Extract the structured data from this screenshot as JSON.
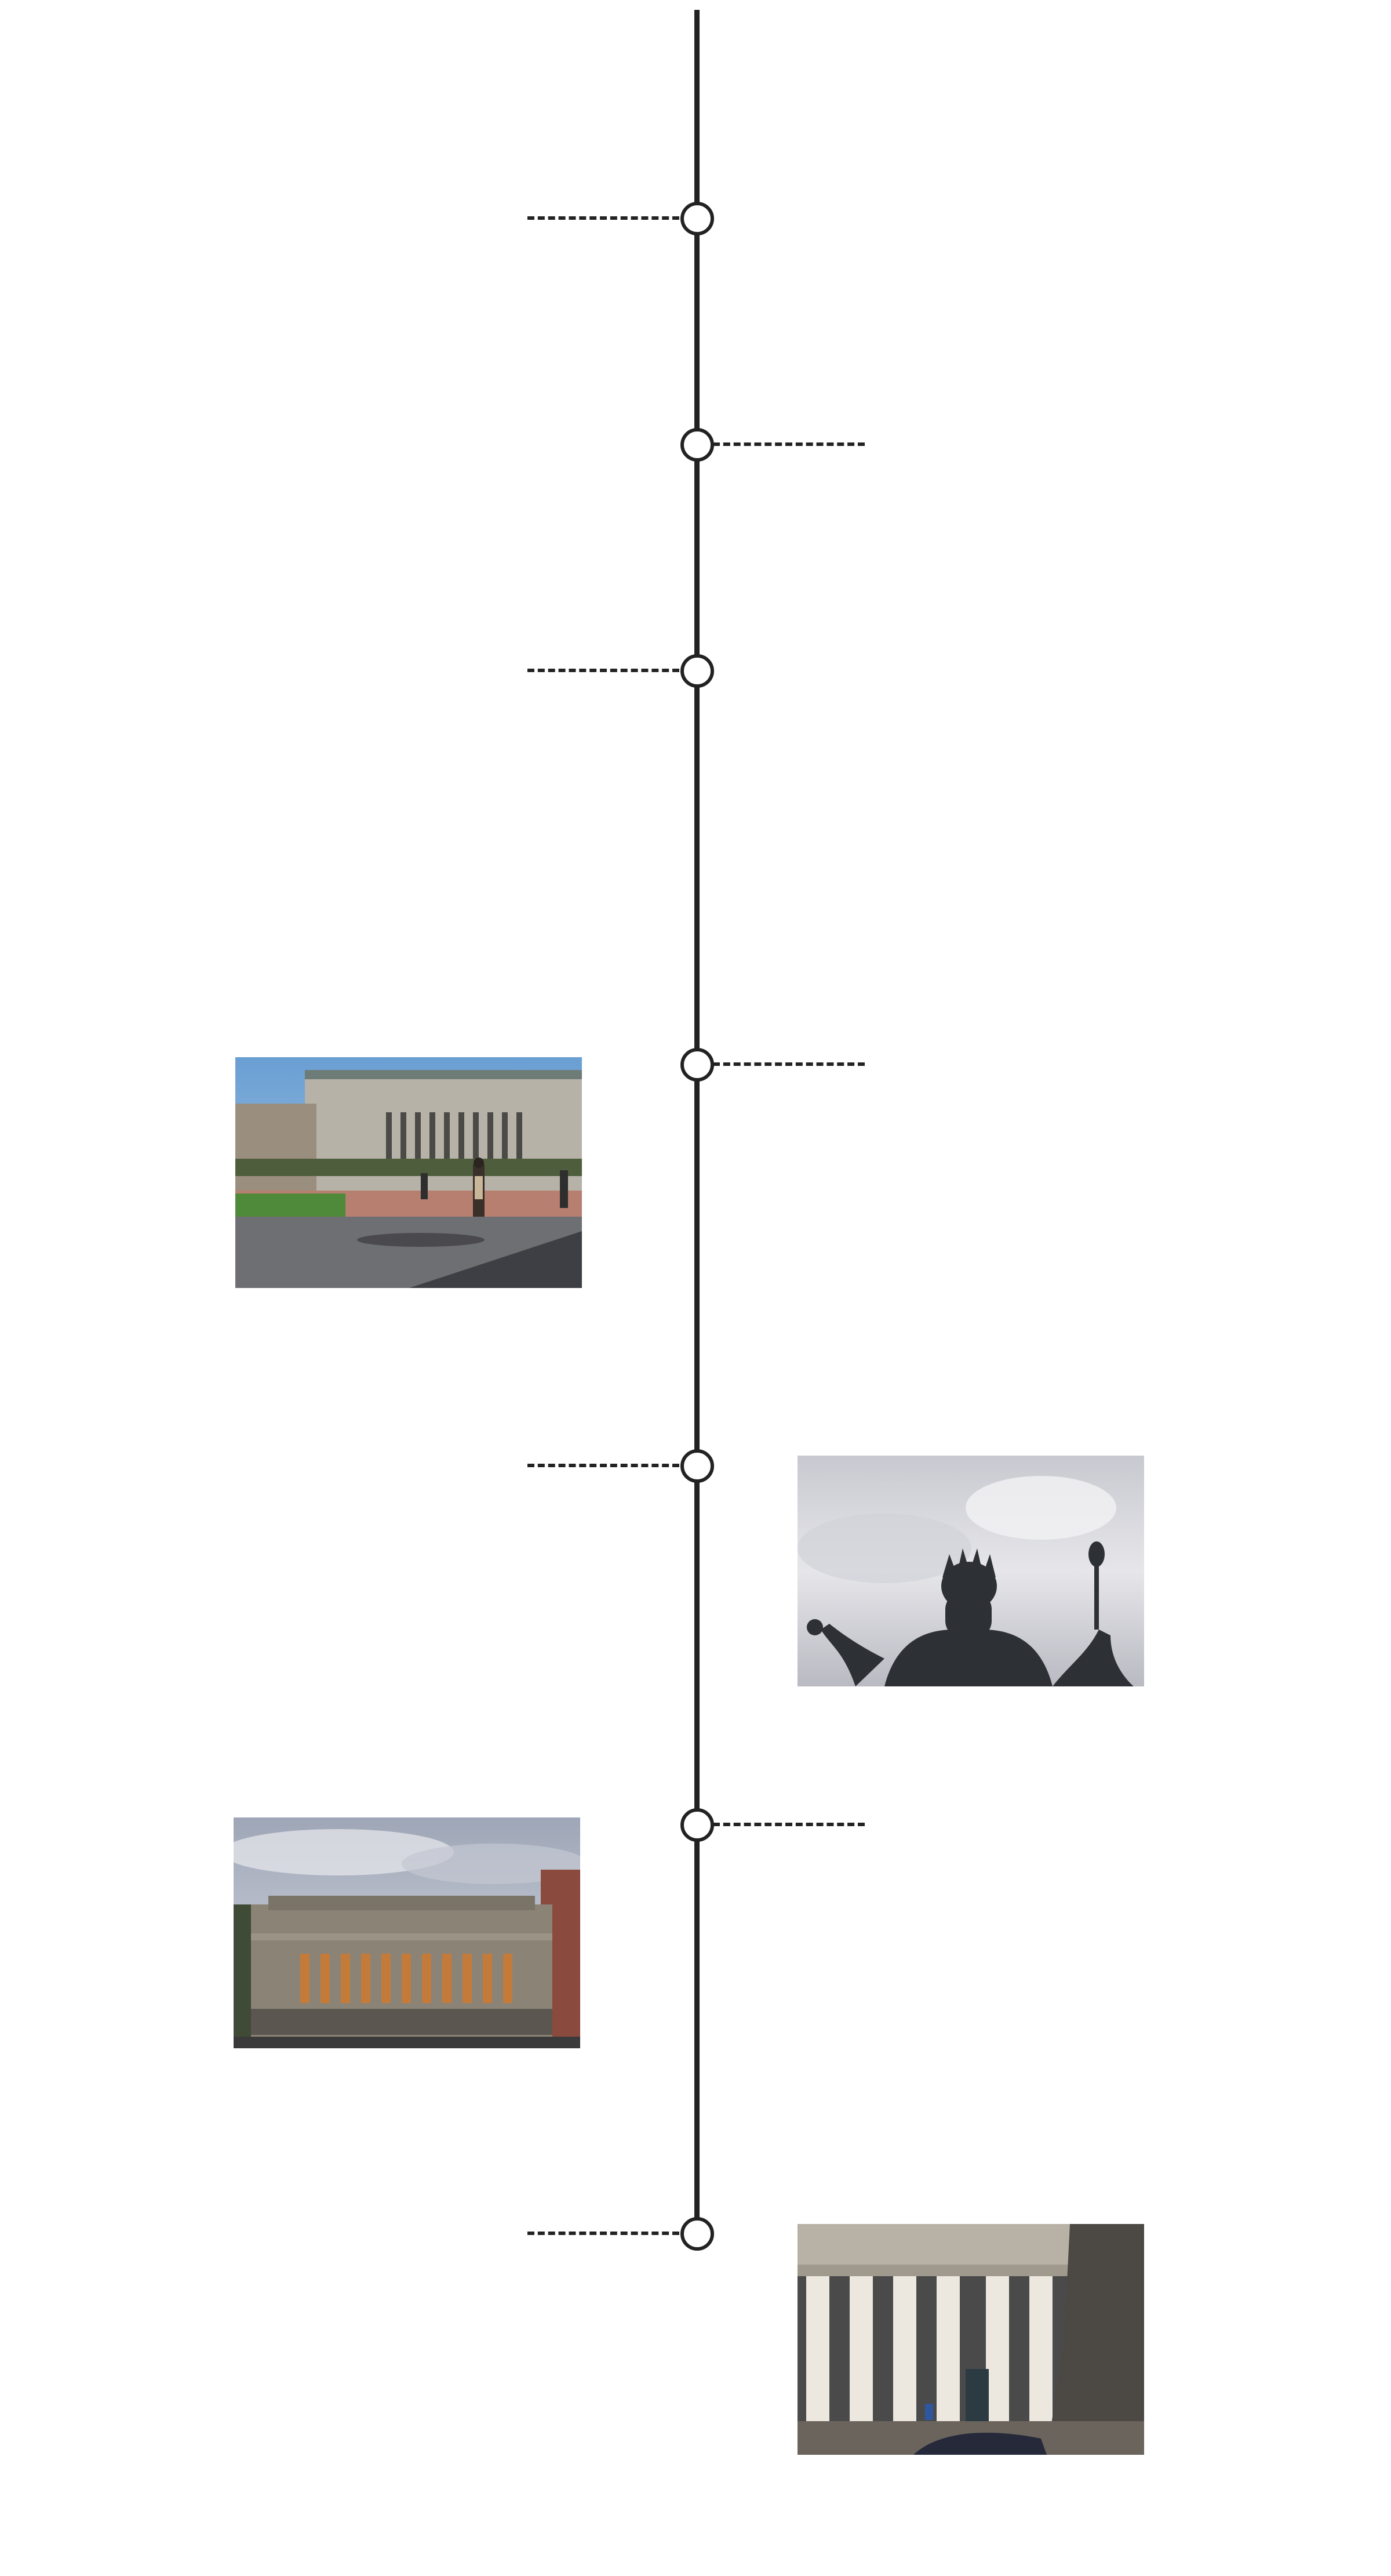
{
  "timeline": {
    "events": [
      {
        "id": 1,
        "side": "left",
        "has_photo": false
      },
      {
        "id": 2,
        "side": "right",
        "has_photo": false
      },
      {
        "id": 3,
        "side": "left",
        "has_photo": false
      },
      {
        "id": 4,
        "side": "right",
        "has_photo": true,
        "photo_icon": "campus-plaza-photo"
      },
      {
        "id": 5,
        "side": "left",
        "has_photo": true,
        "photo_icon": "statue-photo"
      },
      {
        "id": 6,
        "side": "right",
        "has_photo": true,
        "photo_icon": "library-building-photo"
      },
      {
        "id": 7,
        "side": "left",
        "has_photo": true,
        "photo_icon": "colonnade-photo"
      }
    ]
  },
  "colors": {
    "line": "#222222",
    "background": "#ffffff"
  }
}
